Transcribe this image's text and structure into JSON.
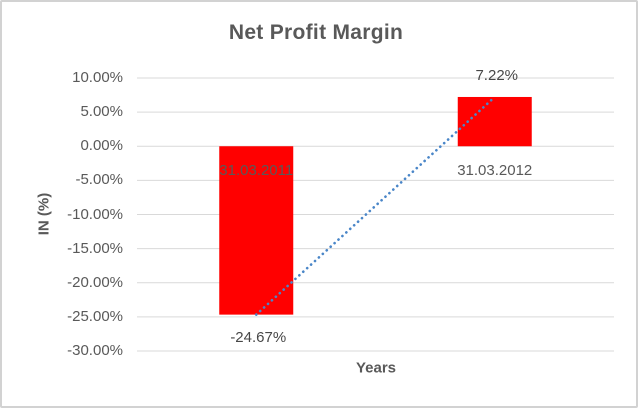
{
  "chart_data": {
    "type": "bar",
    "title": "Net Profit Margin",
    "xlabel": "Years",
    "ylabel": "IN (%)",
    "categories": [
      "31.03.2011",
      "31.03.2012"
    ],
    "values": [
      -24.67,
      7.22
    ],
    "data_labels": [
      "-24.67%",
      "7.22%"
    ],
    "ytick_labels": [
      "10.00%",
      "5.00%",
      "0.00%",
      "-5.00%",
      "-10.00%",
      "-15.00%",
      "-20.00%",
      "-25.00%",
      "-30.00%"
    ],
    "ytick_values": [
      10,
      5,
      0,
      -5,
      -10,
      -15,
      -20,
      -25,
      -30
    ],
    "ylim": [
      -30,
      10
    ],
    "grid": true,
    "legend": "none",
    "bar_color": "#ff0000",
    "gridline_color": "#d9d9d9",
    "text_color": "#595959",
    "trendline": {
      "type": "linear",
      "style": "dotted",
      "color": "#4a86c8",
      "from_point": [
        0,
        -24.67
      ],
      "to_point": [
        1,
        7.22
      ]
    }
  }
}
